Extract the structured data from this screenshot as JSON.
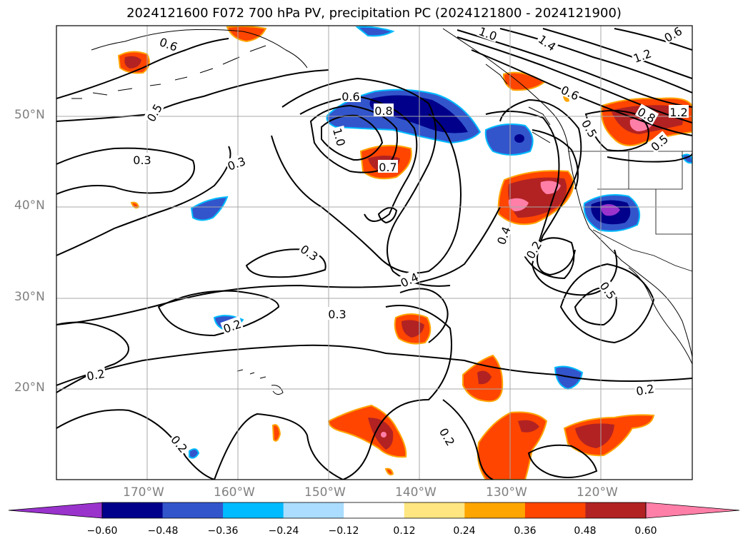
{
  "title": "2024121600 F072 700 hPa PV, precipitation PC (2024121800 - 2024121900)",
  "map": {
    "lon_range": [
      -180,
      -110
    ],
    "lat_range": [
      10,
      60
    ],
    "lat_labels": [
      "50°N",
      "40°N",
      "30°N",
      "20°N"
    ],
    "lon_labels": [
      "170°W",
      "160°W",
      "150°W",
      "140°W",
      "130°W",
      "120°W"
    ],
    "contour_labels": [
      "0.6",
      "0.5",
      "0.3",
      "0.3",
      "0.6",
      "0.8",
      "1.0",
      "0.7",
      "0.3",
      "0.4",
      "0.3",
      "0.2",
      "0.2",
      "0.2",
      "1.0",
      "1.4",
      "1.2",
      "0.6",
      "0.5",
      "0.8",
      "1.2",
      "0.5",
      "0.2",
      "0.5",
      "0.4",
      "0.2",
      "0.2",
      "0.6"
    ]
  },
  "colorbar": {
    "ticks": [
      "−0.60",
      "−0.48",
      "−0.36",
      "−0.24",
      "−0.12",
      "0.12",
      "0.24",
      "0.36",
      "0.48",
      "0.60"
    ],
    "colors": [
      "#9933cc",
      "#00008b",
      "#3355cc",
      "#00bbff",
      "#aaddff",
      "#ffffff",
      "#ffe680",
      "#ffa500",
      "#ff4500",
      "#b22222",
      "#ff7fa8"
    ]
  }
}
